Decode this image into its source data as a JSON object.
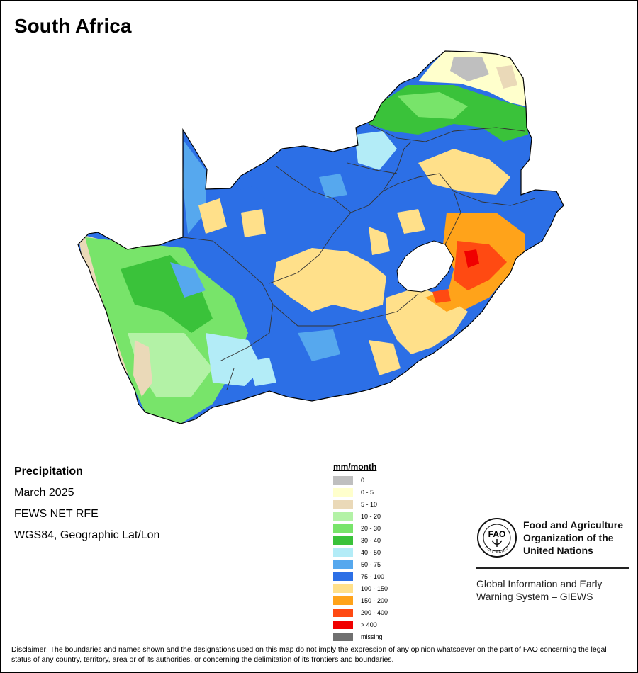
{
  "title": "South Africa",
  "metadata": {
    "product": "Precipitation",
    "period": "March 2025",
    "source": "FEWS NET RFE",
    "projection": "WGS84, Geographic Lat/Lon"
  },
  "legend": {
    "title": "mm/month",
    "classes": [
      {
        "label": "0",
        "color": "#bfbfbf"
      },
      {
        "label": "0 - 5",
        "color": "#ffffcc"
      },
      {
        "label": "5 - 10",
        "color": "#ead9b8"
      },
      {
        "label": "10 - 20",
        "color": "#b3f2a6"
      },
      {
        "label": "20 - 30",
        "color": "#78e46a"
      },
      {
        "label": "30 - 40",
        "color": "#3ac23a"
      },
      {
        "label": "40 - 50",
        "color": "#b3ecf7"
      },
      {
        "label": "50 - 75",
        "color": "#56a8ee"
      },
      {
        "label": "75 - 100",
        "color": "#2c6fe6"
      },
      {
        "label": "100 - 150",
        "color": "#ffe08a"
      },
      {
        "label": "150 - 200",
        "color": "#ffa31a"
      },
      {
        "label": "200 - 400",
        "color": "#ff4a12"
      },
      {
        "label": "> 400",
        "color": "#f00000"
      },
      {
        "label": "missing",
        "color": "#707070"
      }
    ]
  },
  "organization": {
    "name": "Food and Agriculture Organization of the United Nations",
    "name_lines": [
      "Food and Agriculture",
      "Organization of the",
      "United Nations"
    ],
    "emblem_text": "FAO",
    "emblem_motto": "FIAT PANIS",
    "system": "Global Information and Early\nWarning System – GIEWS"
  },
  "disclaimer": "Disclaimer: The boundaries and names shown and the designations used on this map do not imply the expression of any opinion whatsoever on the part of FAO concerning the legal status of any country, territory, area or of its authorities, or concerning the delimitation of its frontiers and boundaries.",
  "map": {
    "background_color": "#ffffff",
    "outline_color": "#000000"
  }
}
